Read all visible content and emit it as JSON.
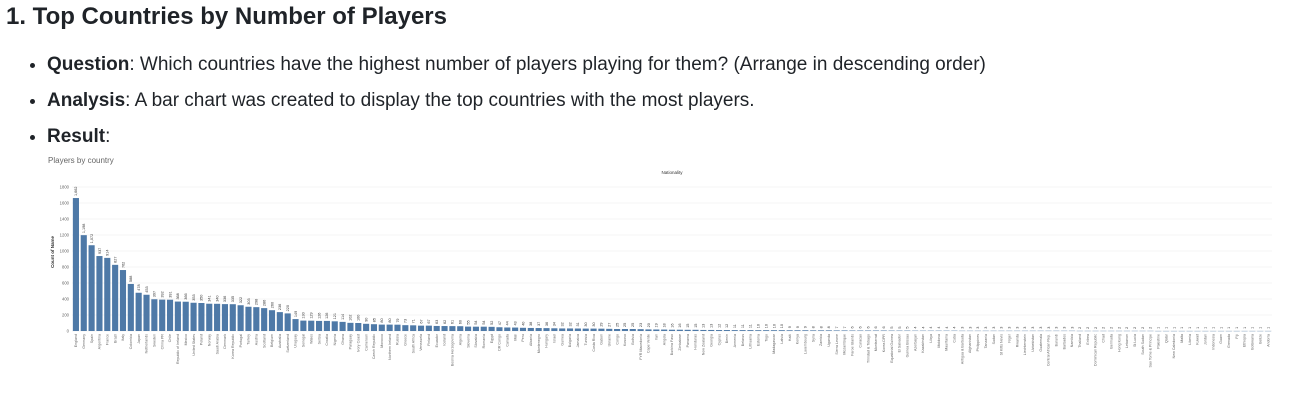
{
  "heading": "1. Top Countries by Number of Players",
  "bullets": {
    "question_label": "Question",
    "question_text": ": Which countries have the highest number of players playing for them? (Arrange in descending order)",
    "analysis_label": "Analysis",
    "analysis_text": ": A bar chart was created to display the top countries with the most players.",
    "result_label": "Result",
    "result_text": ":"
  },
  "colors": {
    "bar": "#4e79a7",
    "grid": "#ececec",
    "axis_text": "#666666"
  },
  "chart_data": {
    "type": "bar",
    "title": "Players by country",
    "header": "Nationality",
    "ylabel": "Count of Name",
    "ylim": [
      0,
      1800
    ],
    "yticks": [
      0,
      200,
      400,
      600,
      800,
      1000,
      1200,
      1400,
      1600,
      1800
    ],
    "grid": true,
    "categories": [
      "England",
      "Germany",
      "Spain",
      "Argentina",
      "France",
      "Brazil",
      "Italy",
      "Colombia",
      "Japan",
      "Netherlands",
      "Sweden",
      "China PR",
      "Chile",
      "Republic of Ireland",
      "Mexico",
      "United States",
      "Poland",
      "Norway",
      "Saudi Arabia",
      "Denmark",
      "Korea Republic",
      "Portugal",
      "Turkey",
      "Austria",
      "Scotland",
      "Belgium",
      "Australia",
      "Switzerland",
      "Uruguay",
      "Senegal",
      "Wales",
      "Serbia",
      "Croatia",
      "Nigeria",
      "Ghana",
      "Paraguay",
      "Ivory Coast",
      "Cameroon",
      "Czech Republic",
      "Morocco",
      "Northern Ireland",
      "Russia",
      "Greece",
      "South Africa",
      "Venezuela",
      "Finland",
      "Ecuador",
      "Iceland",
      "Bosnia Herzegovina",
      "Algeria",
      "Slovenia",
      "Slovakia",
      "Romania",
      "Egypt",
      "DR Congo",
      "Canada",
      "Mali",
      "Peru",
      "Albania",
      "Montenegro",
      "Hungary",
      "Israel",
      "Guinea",
      "Bulgaria",
      "Jamaica",
      "Tunisia",
      "Costa Rica",
      "Gabon",
      "Ukraine",
      "Congo",
      "Kosovo",
      "Bolivia",
      "FYR Macedonia",
      "Cape Verde",
      "Iran",
      "Angola",
      "Burkina Faso",
      "Zimbabwe",
      "Panama",
      "Honduras",
      "New Zealand",
      "Georgia",
      "Cyprus",
      "Benin",
      "Armenia",
      "Belarus",
      "Lithuania",
      "Estonia",
      "Togo",
      "Madagascar",
      "Latvia",
      "Haiti",
      "Kenya",
      "Luxembourg",
      "Syria",
      "Zambia",
      "Uganda",
      "Sierra Leone",
      "Mozambique",
      "Faroe Islands",
      "Curacao",
      "Trinidad & Tobago",
      "Montserrat",
      "Korea DPR",
      "Equatorial Guinea",
      "El Salvador",
      "Guinea Bissau",
      "Azerbaijan",
      "Kazakhstan",
      "Libya",
      "Moldova",
      "Mauritania",
      "Cuba",
      "Antigua & Barbuda",
      "Afghanistan",
      "Philippines",
      "Tanzania",
      "Sudan",
      "St Kitts Nevis",
      "Niger",
      "Rwanda",
      "Liechtenstein",
      "Uzbekistan",
      "Guatemala",
      "Central African Rep.",
      "Burundi",
      "Barbados",
      "Namibia",
      "Thailand",
      "Eritrea",
      "Dominican Republic",
      "Chad",
      "Bermuda",
      "Hong Kong",
      "Lebanon",
      "St Lucia",
      "South Sudan",
      "Sao Tome & Principe",
      "Palestine",
      "Qatar",
      "New Caledonia",
      "Malta",
      "Liberia",
      "Kuwait",
      "Jordan",
      "Indonesia",
      "Guam",
      "Grenada",
      "Fiji",
      "Ethiopia",
      "Botswana",
      "Belize",
      "Andorra"
    ],
    "values": [
      1662,
      1198,
      1072,
      937,
      914,
      827,
      762,
      588,
      478,
      453,
      397,
      392,
      391,
      368,
      366,
      353,
      350,
      341,
      340,
      336,
      335,
      322,
      303,
      298,
      286,
      260,
      236,
      220,
      149,
      130,
      129,
      126,
      126,
      121,
      114,
      102,
      100,
      90,
      85,
      80,
      80,
      79,
      73,
      71,
      67,
      67,
      63,
      62,
      61,
      60,
      55,
      54,
      54,
      52,
      47,
      44,
      43,
      40,
      38,
      37,
      36,
      34,
      32,
      32,
      31,
      30,
      30,
      29,
      27,
      25,
      25,
      25,
      23,
      20,
      19,
      18,
      16,
      16,
      15,
      15,
      13,
      13,
      12,
      12,
      11,
      11,
      11,
      10,
      10,
      10,
      10,
      9,
      9,
      9,
      8,
      8,
      8,
      7,
      7,
      6,
      6,
      6,
      6,
      6,
      5,
      5,
      5,
      4,
      4,
      4,
      4,
      4,
      4,
      3,
      3,
      3,
      3,
      3,
      3,
      3,
      3,
      3,
      3,
      3,
      3,
      3,
      3,
      3,
      2,
      2,
      2,
      2,
      2,
      2,
      2,
      2,
      2,
      2,
      1,
      1,
      1,
      1,
      1,
      1,
      1,
      1,
      1,
      1,
      1,
      1,
      1,
      1,
      1
    ]
  }
}
